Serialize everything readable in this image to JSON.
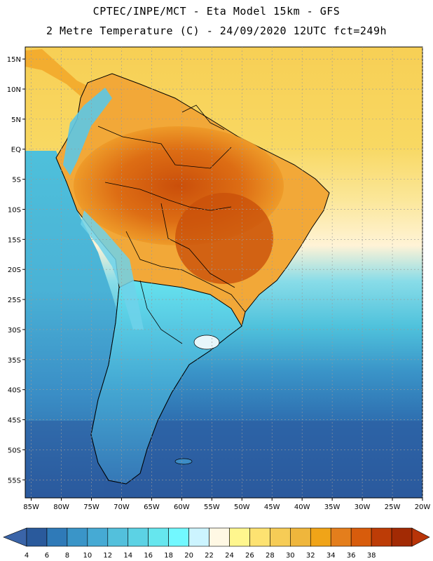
{
  "title": {
    "line1": "CPTEC/INPE/MCT -  Eta Model 15km - GFS",
    "line2": "2 Metre Temperature (C) - 24/09/2020 12UTC fct=249h"
  },
  "map": {
    "lat_labels": [
      "15N",
      "10N",
      "5N",
      "EQ",
      "5S",
      "10S",
      "15S",
      "20S",
      "25S",
      "30S",
      "35S",
      "40S",
      "45S",
      "50S",
      "55S"
    ],
    "lon_labels": [
      "85W",
      "80W",
      "75W",
      "70W",
      "65W",
      "60W",
      "55W",
      "50W",
      "45W",
      "40W",
      "35W",
      "30W",
      "25W",
      "20W"
    ],
    "lat_range": [
      17,
      -58
    ],
    "lon_range": [
      -86,
      -20
    ]
  },
  "legend": {
    "tick_labels": [
      "4",
      "6",
      "8",
      "10",
      "12",
      "14",
      "16",
      "18",
      "20",
      "22",
      "24",
      "26",
      "28",
      "30",
      "32",
      "34",
      "36",
      "38"
    ],
    "colors": [
      "#2a5a9c",
      "#2f7ab8",
      "#3a95c8",
      "#46aad4",
      "#53c0dc",
      "#5cd2e4",
      "#66e6ee",
      "#72f8ff",
      "#ccf4ff",
      "#fff8e4",
      "#fff68e",
      "#fde271",
      "#f6cc56",
      "#efb63c",
      "#f0a418",
      "#e47e1c",
      "#d85c0c",
      "#bd3c06",
      "#a22a04"
    ],
    "below_color": "#3a64a8",
    "above_color": "#b83408"
  },
  "colors": {
    "ocean_deep": "#2d5ca3",
    "ocean_mid": "#3f8fc9",
    "ocean_light": "#55c6de",
    "land_hot": "#d96512",
    "land_warm": "#f0a52a",
    "andes": "#6cc8ea"
  }
}
